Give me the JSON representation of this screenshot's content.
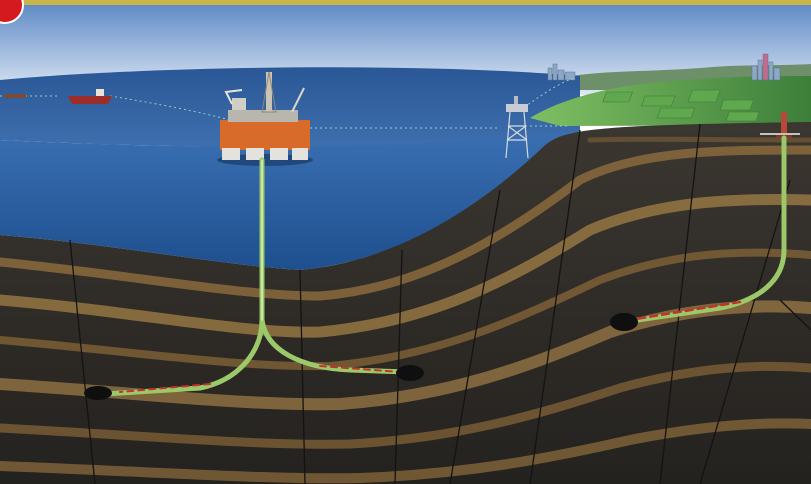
{
  "scene": {
    "subject": "offshore-and-onshore-oil-production-cross-section",
    "colors": {
      "sky_top": "#5a86c4",
      "sky_bottom": "#dfe9f5",
      "sea_surface": "#2f5f9c",
      "sea_deep": "#1f4e8a",
      "rock_dark": "#2b2a28",
      "rock_band": "#8a6a3c",
      "land_green": "#4f9a46",
      "platform_orange": "#d86b2a",
      "pipe_green": "#9bc96a",
      "oil_red": "#c8302a",
      "accent_red": "#d41a1f",
      "top_strip": "#c9b64a"
    },
    "icons": [
      "floating-production-platform-icon",
      "tanker-ship-icon",
      "fixed-jacket-platform-icon",
      "onshore-drilling-rig-icon",
      "city-skyline-icon"
    ]
  }
}
